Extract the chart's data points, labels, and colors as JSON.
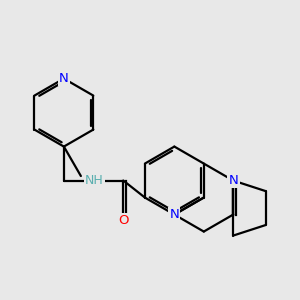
{
  "bg_color": "#e8e8e8",
  "bond_color": "#000000",
  "bond_width": 1.6,
  "atom_colors": {
    "N": "#0000ff",
    "O": "#ff0000",
    "NH": "#5aafaf",
    "C": "#000000"
  },
  "font_size": 9.5,
  "figsize": [
    3.0,
    3.0
  ],
  "dpi": 100
}
